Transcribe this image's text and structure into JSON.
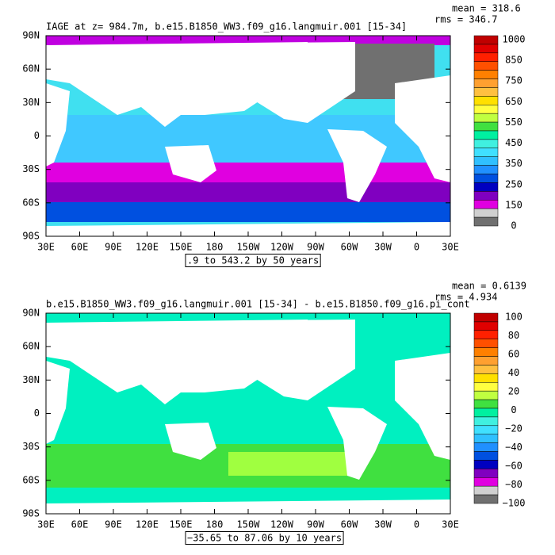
{
  "panels": [
    {
      "title": "IAGE at z= 984.7m, b.e15.B1850_WW3.f09_g16.langmuir.001  [15-34]",
      "mean": "mean = 318.6",
      "rms": "rms = 346.7",
      "range": ".9 to 543.2 by 50 years",
      "lat_labels": [
        "90N",
        "60N",
        "30N",
        "0",
        "30S",
        "60S",
        "90S"
      ],
      "lon_labels": [
        "30E",
        "60E",
        "90E",
        "120E",
        "150E",
        "180",
        "150W",
        "120W",
        "90W",
        "60W",
        "30W",
        "0",
        "30E"
      ],
      "colorbar": {
        "labels": [
          "1000",
          "850",
          "750",
          "650",
          "550",
          "450",
          "350",
          "250",
          "150",
          "0"
        ],
        "colors": [
          "#c00000",
          "#e00000",
          "#ff2000",
          "#ff5000",
          "#ff8000",
          "#ffa030",
          "#ffc040",
          "#ffe000",
          "#ffff40",
          "#c0ff40",
          "#40e040",
          "#00f0a0",
          "#40f0e0",
          "#40e0ff",
          "#30c0ff",
          "#2090ff",
          "#0050e0",
          "#0000c0",
          "#8000c0",
          "#e000e0",
          "#d0d0d0",
          "#707070"
        ]
      }
    },
    {
      "title": "b.e15.B1850_WW3.f09_g16.langmuir.001  [15-34]  - b.e15.B1850.f09_g16.pi_cont",
      "mean": "mean = 0.6139",
      "rms": "rms = 4.934",
      "range": "−35.65 to 87.06 by 10 years",
      "lat_labels": [
        "90N",
        "60N",
        "30N",
        "0",
        "30S",
        "60S",
        "90S"
      ],
      "lon_labels": [
        "30E",
        "60E",
        "90E",
        "120E",
        "150E",
        "180",
        "150W",
        "120W",
        "90W",
        "60W",
        "30W",
        "0",
        "30E"
      ],
      "colorbar": {
        "labels": [
          "100",
          "80",
          "60",
          "40",
          "20",
          "0",
          "−20",
          "−40",
          "−60",
          "−80",
          "−100"
        ],
        "colors": [
          "#c00000",
          "#e00000",
          "#ff2000",
          "#ff5000",
          "#ff8000",
          "#ffa030",
          "#ffc040",
          "#ffe000",
          "#ffff40",
          "#c0ff40",
          "#40e040",
          "#00f0a0",
          "#40f0e0",
          "#40e0ff",
          "#30c0ff",
          "#2090ff",
          "#0050e0",
          "#0000c0",
          "#8000c0",
          "#e000e0",
          "#d0d0d0",
          "#707070"
        ]
      }
    }
  ]
}
